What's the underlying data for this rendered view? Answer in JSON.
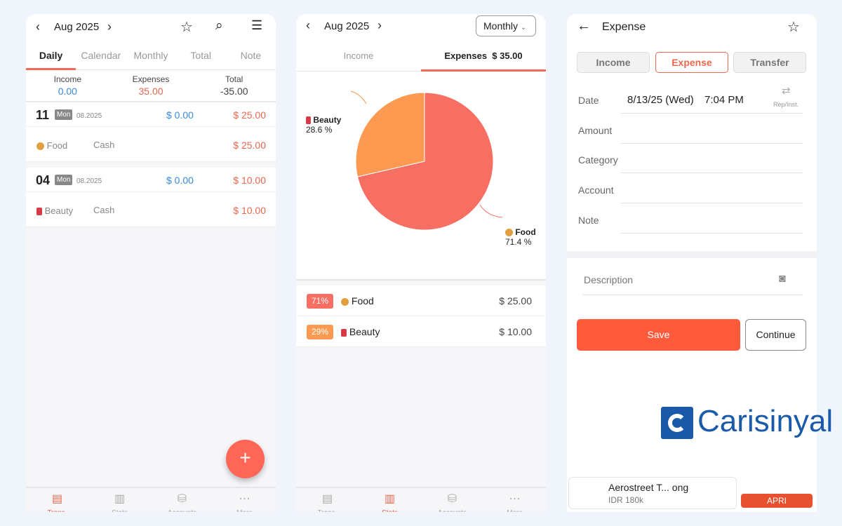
{
  "left": {
    "month": "Aug 2025",
    "tabs": [
      "Daily",
      "Calendar",
      "Monthly",
      "Total",
      "Note"
    ],
    "summary": {
      "income_label": "Income",
      "income": "0.00",
      "expenses_label": "Expenses",
      "expenses": "35.00",
      "total_label": "Total",
      "total": "-35.00"
    },
    "days": [
      {
        "day": "11",
        "weekday": "Mon",
        "month": "08.2025",
        "income": "$ 0.00",
        "expense": "$ 25.00",
        "item": {
          "icon": "noodle-bowl",
          "category": "Food",
          "account": "Cash",
          "amount": "$ 25.00"
        }
      },
      {
        "day": "04",
        "weekday": "Mon",
        "month": "08.2025",
        "income": "$ 0.00",
        "expense": "$ 10.00",
        "item": {
          "icon": "lipstick",
          "category": "Beauty",
          "account": "Cash",
          "amount": "$ 10.00"
        }
      }
    ],
    "fab": "+"
  },
  "nav": [
    {
      "label": "Trans.",
      "icon": "book-icon"
    },
    {
      "label": "Stats",
      "icon": "bar-chart-icon"
    },
    {
      "label": "Accounts",
      "icon": "coins-icon"
    },
    {
      "label": "More",
      "icon": "more-icon"
    }
  ],
  "middle": {
    "month": "Aug 2025",
    "period": "Monthly",
    "tabs": [
      "Income",
      "Expenses  $ 35.00"
    ],
    "list": [
      {
        "pct": "71%",
        "category": "Food",
        "amount": "$ 25.00",
        "color": "#f76e62"
      },
      {
        "pct": "29%",
        "category": "Beauty",
        "amount": "$ 10.00",
        "color": "#fb9a50"
      }
    ]
  },
  "chart_data": {
    "type": "pie",
    "slices": [
      {
        "label": "Food",
        "value": 71.4,
        "display": "71.4 %",
        "color": "#f76e62"
      },
      {
        "label": "Beauty",
        "value": 28.6,
        "display": "28.6 %",
        "color": "#fb9a50"
      }
    ]
  },
  "right": {
    "title": "Expense",
    "types": [
      "Income",
      "Expense",
      "Transfer"
    ],
    "fields": {
      "date_label": "Date",
      "date": "8/13/25 (Wed)",
      "time": "7:04 PM",
      "rep": "Rep/Inst.",
      "amount": "Amount",
      "category": "Category",
      "account": "Account",
      "note": "Note",
      "description": "Description"
    },
    "save": "Save",
    "continue": "Continue",
    "ad": {
      "title": "Aerostreet T... ong",
      "price": "IDR 180k",
      "cta": "APRI"
    }
  },
  "watermark": "Carisinyal",
  "colors": {
    "accent": "#e8674e",
    "save": "#ff5a3c",
    "income": "#3a8ad8"
  }
}
